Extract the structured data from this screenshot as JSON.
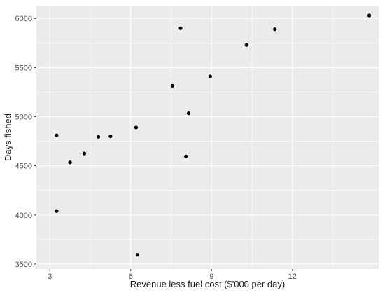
{
  "chart_data": {
    "type": "scatter",
    "title": "",
    "xlabel": "Revenue less fuel cost ($'000 per day)",
    "ylabel": "Days fished",
    "xlim": [
      2.5,
      15.2
    ],
    "ylim": [
      3450,
      6130
    ],
    "x_ticks": [
      3,
      6,
      9,
      12
    ],
    "x_minor_ticks": [
      4.5,
      7.5,
      10.5,
      13.5
    ],
    "y_ticks": [
      3500,
      4000,
      4500,
      5000,
      5500,
      6000
    ],
    "y_minor_ticks": [
      3750,
      4250,
      4750,
      5250,
      5750
    ],
    "grid": true,
    "panel_color": "#ebebeb",
    "grid_color": "#ffffff",
    "point_color": "#000000",
    "points": [
      {
        "x": 3.25,
        "y": 4810
      },
      {
        "x": 3.25,
        "y": 4040
      },
      {
        "x": 3.75,
        "y": 4535
      },
      {
        "x": 4.28,
        "y": 4625
      },
      {
        "x": 4.8,
        "y": 4795
      },
      {
        "x": 5.25,
        "y": 4800
      },
      {
        "x": 6.2,
        "y": 4890
      },
      {
        "x": 6.25,
        "y": 3595
      },
      {
        "x": 7.55,
        "y": 5315
      },
      {
        "x": 7.85,
        "y": 5900
      },
      {
        "x": 8.05,
        "y": 4595
      },
      {
        "x": 8.15,
        "y": 5035
      },
      {
        "x": 8.95,
        "y": 5410
      },
      {
        "x": 10.3,
        "y": 5730
      },
      {
        "x": 11.35,
        "y": 5890
      },
      {
        "x": 14.85,
        "y": 6030
      }
    ]
  }
}
